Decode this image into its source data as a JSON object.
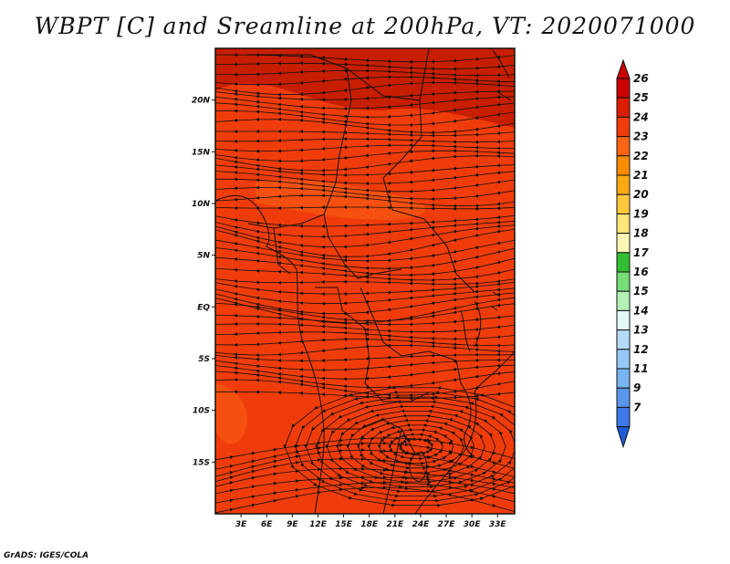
{
  "title": "WBPT [C] and Sreamline at 200hPa, VT: 2020071000",
  "credit": "GrADS: IGES/COLA",
  "map": {
    "variable": "Wet-bulb potential temperature",
    "units": "C",
    "level": "200hPa",
    "lon_range": [
      0,
      35
    ],
    "lat_range": [
      -20,
      25
    ],
    "lat_ticks": [
      {
        "value": 20,
        "label": "20N"
      },
      {
        "value": 15,
        "label": "15N"
      },
      {
        "value": 10,
        "label": "10N"
      },
      {
        "value": 5,
        "label": "5N"
      },
      {
        "value": 0,
        "label": "EQ"
      },
      {
        "value": -5,
        "label": "5S"
      },
      {
        "value": -10,
        "label": "10S"
      },
      {
        "value": -15,
        "label": "15S"
      }
    ],
    "lon_ticks": [
      {
        "value": 3,
        "label": "3E"
      },
      {
        "value": 6,
        "label": "6E"
      },
      {
        "value": 9,
        "label": "9E"
      },
      {
        "value": 12,
        "label": "12E"
      },
      {
        "value": 15,
        "label": "15E"
      },
      {
        "value": 18,
        "label": "18E"
      },
      {
        "value": 21,
        "label": "21E"
      },
      {
        "value": 24,
        "label": "24E"
      },
      {
        "value": 27,
        "label": "27E"
      },
      {
        "value": 30,
        "label": "30E"
      },
      {
        "value": 33,
        "label": "33E"
      }
    ],
    "field_colors": {
      "warm_band": "#c81e00",
      "main": "#f03c0a",
      "light_patch": "#f5500f"
    },
    "anticyclone_center": {
      "lon": 23.5,
      "lat": -13.5
    }
  },
  "colorbar": {
    "entries": [
      {
        "label": "26",
        "color": "#c80000"
      },
      {
        "label": "25",
        "color": "#dc1e00"
      },
      {
        "label": "24",
        "color": "#f03c0a"
      },
      {
        "label": "23",
        "color": "#fa6414"
      },
      {
        "label": "22",
        "color": "#ff8c00"
      },
      {
        "label": "21",
        "color": "#ffaa14"
      },
      {
        "label": "20",
        "color": "#ffc83c"
      },
      {
        "label": "19",
        "color": "#ffe678"
      },
      {
        "label": "18",
        "color": "#fff5b4"
      },
      {
        "label": "17",
        "color": "#32be32"
      },
      {
        "label": "16",
        "color": "#78dc78"
      },
      {
        "label": "15",
        "color": "#b4f0b4"
      },
      {
        "label": "14",
        "color": "#e0f8f8"
      },
      {
        "label": "13",
        "color": "#b4dcf8"
      },
      {
        "label": "12",
        "color": "#96c8f5"
      },
      {
        "label": "11",
        "color": "#78b4f0"
      },
      {
        "label": "9",
        "color": "#5a96eb"
      },
      {
        "label": "7",
        "color": "#3c78e6"
      },
      {
        "label": "",
        "color": "#1e5ad2"
      }
    ]
  }
}
